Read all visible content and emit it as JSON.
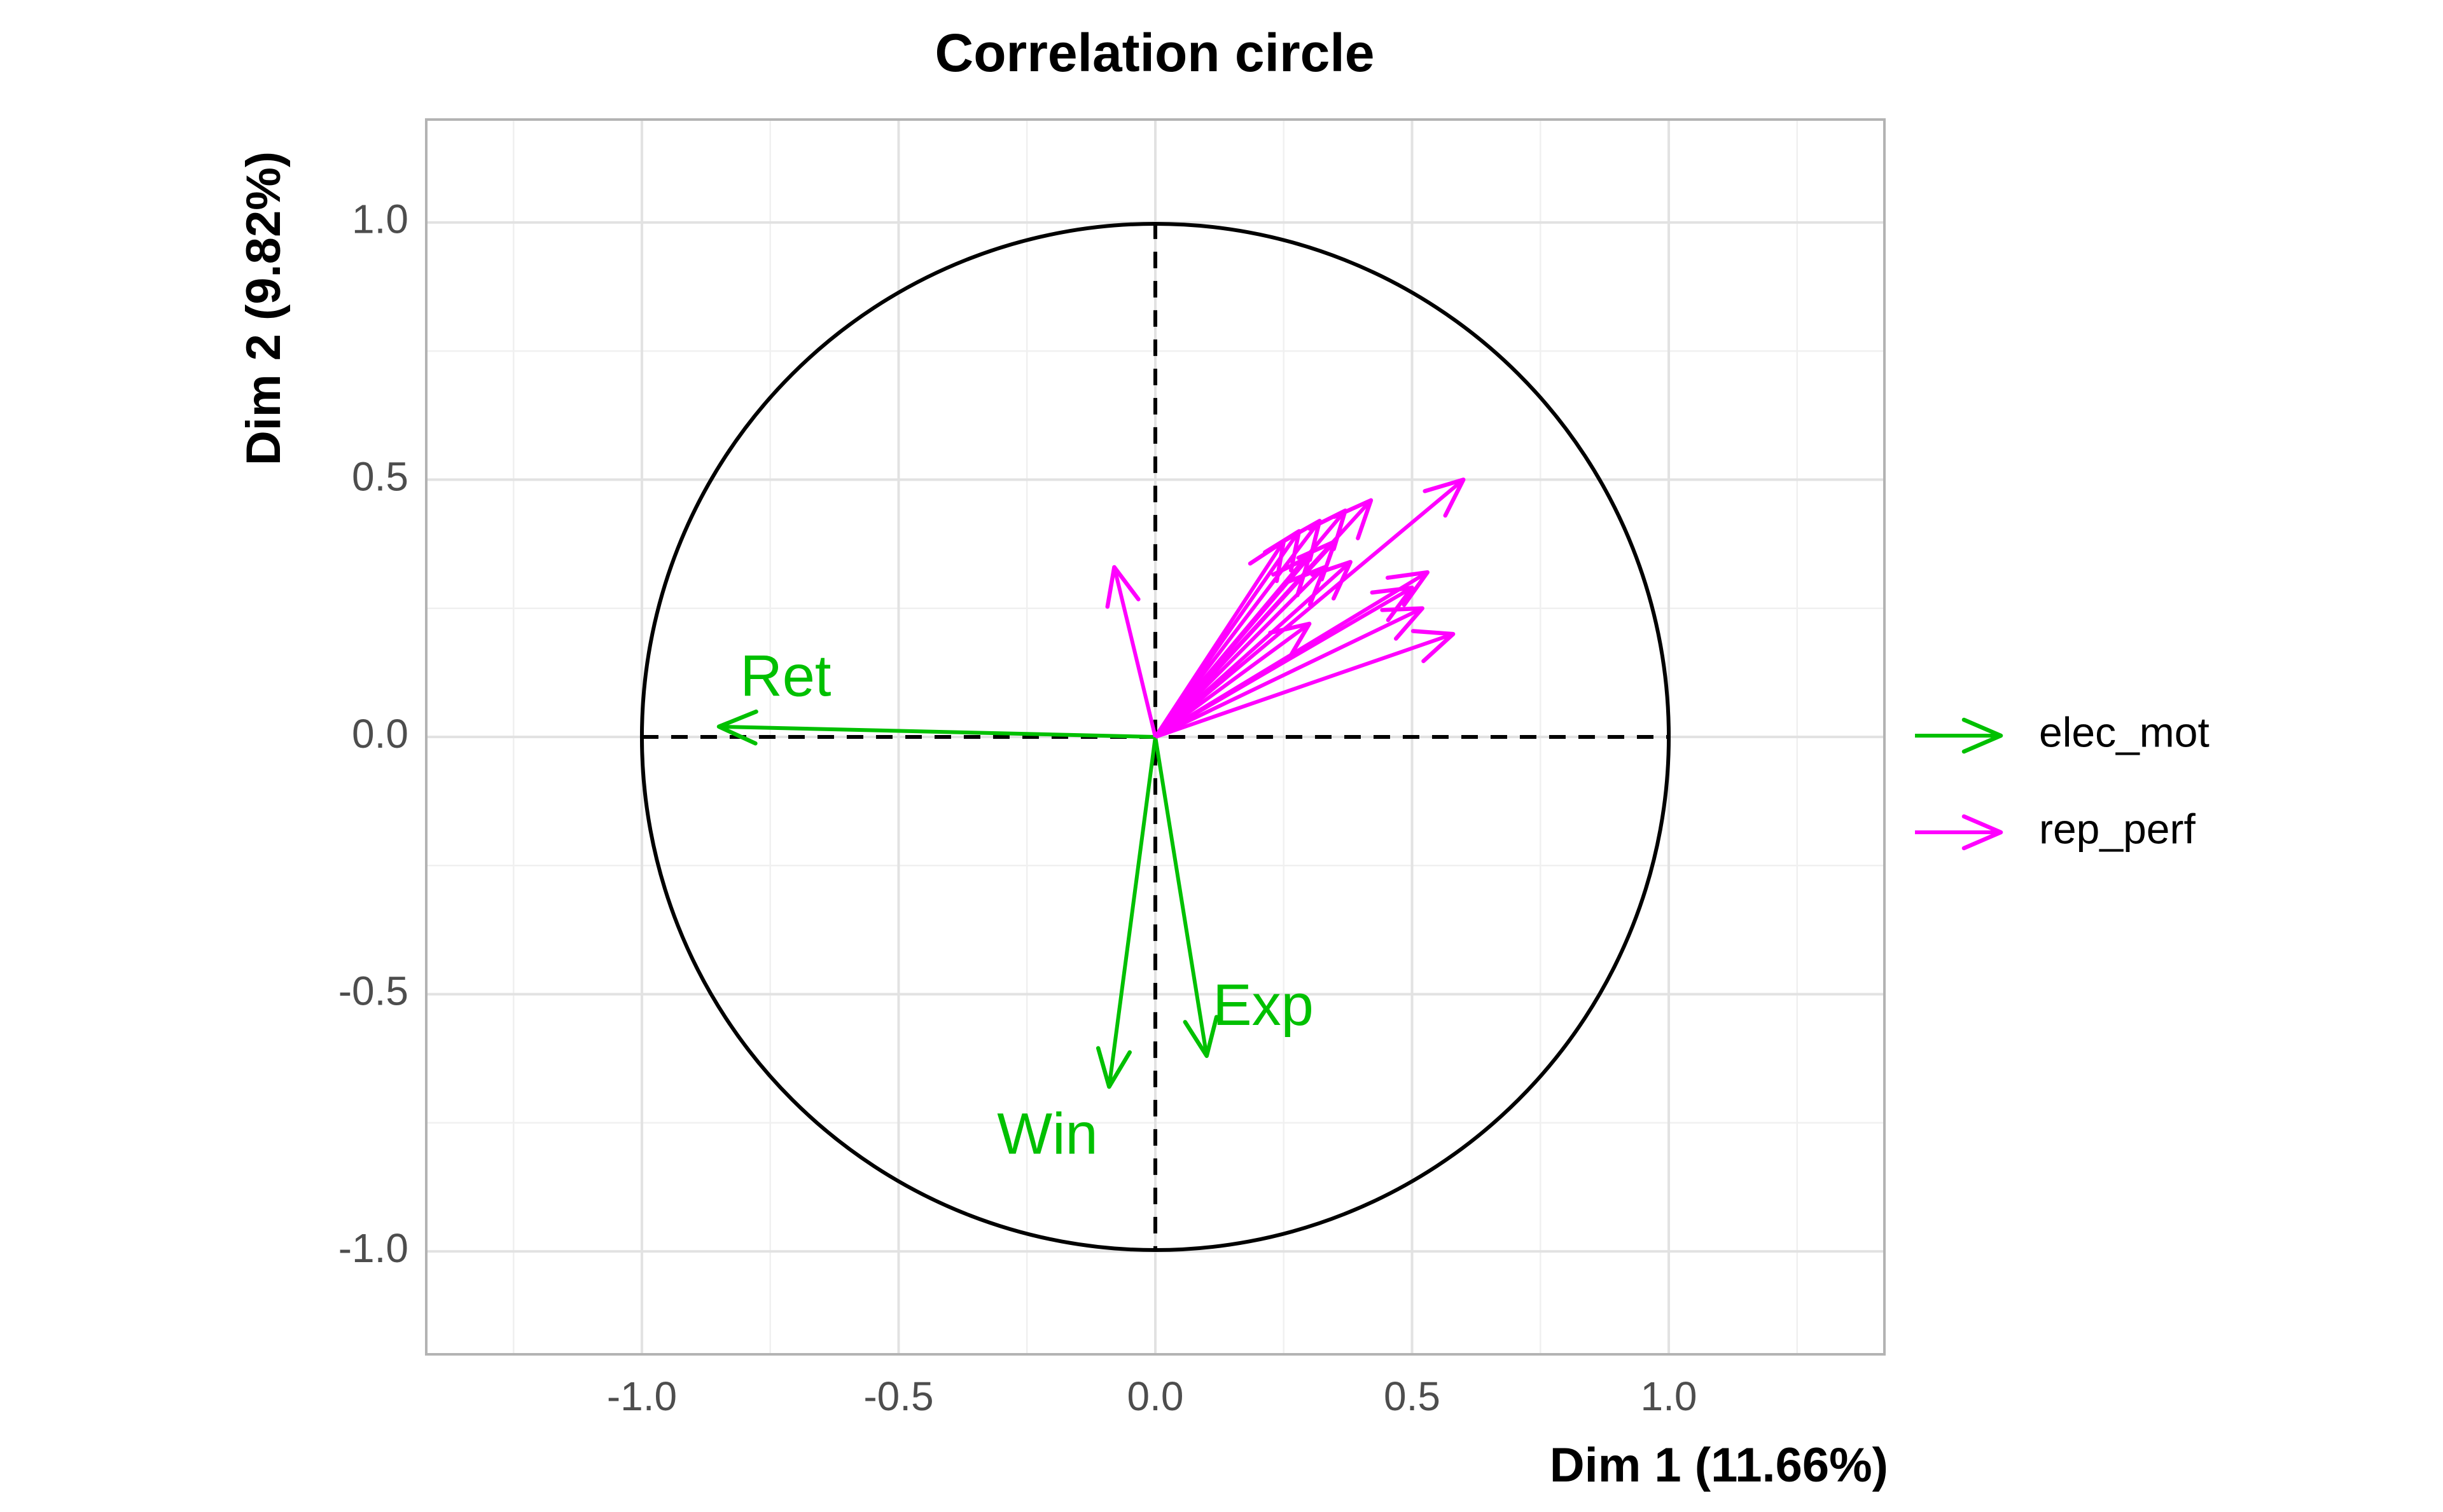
{
  "chart_data": {
    "type": "scatter",
    "subtype": "correlation-circle",
    "title": "Correlation circle",
    "xlabel": "Dim 1 (11.66%)",
    "ylabel": "Dim 2 (9.82%)",
    "xlim": [
      -1.42,
      1.42
    ],
    "ylim": [
      -1.2,
      1.2
    ],
    "x_ticks": [
      {
        "value": -1.0,
        "label": "-1.0"
      },
      {
        "value": -0.5,
        "label": "-0.5"
      },
      {
        "value": 0.0,
        "label": "0.0"
      },
      {
        "value": 0.5,
        "label": "0.5"
      },
      {
        "value": 1.0,
        "label": "1.0"
      }
    ],
    "y_ticks": [
      {
        "value": -1.0,
        "label": "-1.0"
      },
      {
        "value": -0.5,
        "label": "-0.5"
      },
      {
        "value": 0.0,
        "label": "0.0"
      },
      {
        "value": 0.5,
        "label": "0.5"
      },
      {
        "value": 1.0,
        "label": "1.0"
      }
    ],
    "grid": true,
    "unit_circle": true,
    "reference_lines": "dashed at x=0 and y=0",
    "legend": {
      "placement": "right",
      "entries": [
        {
          "name": "elec_mot",
          "color": "#00c000"
        },
        {
          "name": "rep_perf",
          "color": "#ff00ff"
        }
      ]
    },
    "series": [
      {
        "name": "elec_mot",
        "color": "#00c000",
        "vectors": [
          {
            "label": "Ret",
            "x": -0.85,
            "y": 0.02,
            "label_x": -0.72,
            "label_y": 0.11
          },
          {
            "label": "Win",
            "x": -0.09,
            "y": -0.68,
            "label_x": -0.21,
            "label_y": -0.78
          },
          {
            "label": "Exp",
            "x": 0.1,
            "y": -0.62,
            "label_x": 0.21,
            "label_y": -0.53
          }
        ]
      },
      {
        "name": "rep_perf",
        "color": "#ff00ff",
        "vectors": [
          {
            "label": "",
            "x": -0.08,
            "y": 0.33
          },
          {
            "label": "",
            "x": 0.6,
            "y": 0.5
          },
          {
            "label": "",
            "x": 0.42,
            "y": 0.46
          },
          {
            "label": "",
            "x": 0.37,
            "y": 0.44
          },
          {
            "label": "",
            "x": 0.32,
            "y": 0.42
          },
          {
            "label": "",
            "x": 0.28,
            "y": 0.4
          },
          {
            "label": "",
            "x": 0.25,
            "y": 0.38
          },
          {
            "label": "",
            "x": 0.35,
            "y": 0.38
          },
          {
            "label": "",
            "x": 0.3,
            "y": 0.35
          },
          {
            "label": "",
            "x": 0.38,
            "y": 0.34
          },
          {
            "label": "",
            "x": 0.33,
            "y": 0.33
          },
          {
            "label": "",
            "x": 0.53,
            "y": 0.32
          },
          {
            "label": "",
            "x": 0.5,
            "y": 0.29
          },
          {
            "label": "",
            "x": 0.52,
            "y": 0.25
          },
          {
            "label": "",
            "x": 0.58,
            "y": 0.2
          },
          {
            "label": "",
            "x": 0.3,
            "y": 0.22
          }
        ]
      }
    ]
  }
}
